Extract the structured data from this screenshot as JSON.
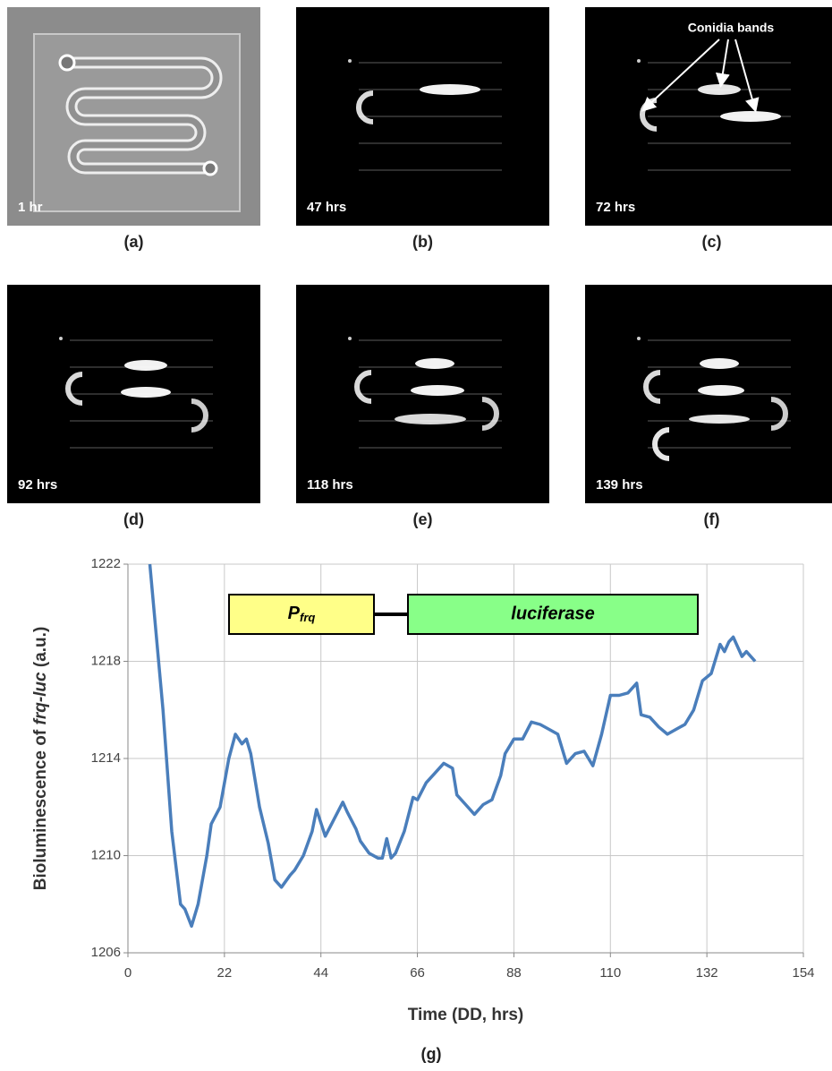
{
  "panels": [
    {
      "time": "1 hr",
      "caption": "(a)"
    },
    {
      "time": "47 hrs",
      "caption": "(b)"
    },
    {
      "time": "72 hrs",
      "caption": "(c)",
      "annotation": "Conidia bands"
    },
    {
      "time": "92 hrs",
      "caption": "(d)"
    },
    {
      "time": "118 hrs",
      "caption": "(e)"
    },
    {
      "time": "139 hrs",
      "caption": "(f)"
    }
  ],
  "chart_data": {
    "type": "line",
    "caption": "(g)",
    "xlabel": "Time (DD, hrs)",
    "ylabel": [
      "Bioluminescence of ",
      "frq-luc",
      " (a.u.)"
    ],
    "construct": {
      "promoter": "P",
      "promoter_sub": "frq",
      "gene": "luciferase"
    },
    "x": [
      5,
      8,
      10,
      12,
      13,
      14.5,
      16,
      18,
      19,
      21,
      23,
      24.5,
      26,
      27,
      28,
      30,
      32,
      33.5,
      35,
      37,
      38,
      40,
      42,
      43,
      45,
      47,
      49,
      50,
      52,
      53,
      55,
      57,
      58,
      59,
      60,
      61,
      63,
      65,
      66,
      68,
      70,
      72,
      74,
      75,
      77,
      79,
      81,
      83,
      85,
      86,
      88,
      90,
      92,
      94,
      96,
      98,
      100,
      102,
      104,
      106,
      108,
      110,
      112,
      114,
      116,
      117,
      119,
      121,
      123,
      125,
      127,
      129,
      131,
      133,
      135,
      136,
      137,
      138,
      140,
      141,
      143
    ],
    "series": [
      {
        "name": "frq-luc",
        "color": "#4a7ebb",
        "values": [
          1222,
          1216,
          1211,
          1208,
          1207.8,
          1207.1,
          1208,
          1210,
          1211.3,
          1212,
          1214,
          1215,
          1214.6,
          1214.8,
          1214.2,
          1212,
          1210.5,
          1209,
          1208.7,
          1209.2,
          1209.4,
          1210,
          1211,
          1211.9,
          1210.8,
          1211.5,
          1212.2,
          1211.8,
          1211.1,
          1210.6,
          1210.1,
          1209.9,
          1209.9,
          1210.7,
          1209.9,
          1210.1,
          1211,
          1212.4,
          1212.3,
          1213,
          1213.4,
          1213.8,
          1213.6,
          1212.5,
          1212.1,
          1211.7,
          1212.1,
          1212.3,
          1213.3,
          1214.2,
          1214.8,
          1214.8,
          1215.5,
          1215.4,
          1215.2,
          1215,
          1213.8,
          1214.2,
          1214.3,
          1213.7,
          1215,
          1216.6,
          1216.6,
          1216.7,
          1217.1,
          1215.8,
          1215.7,
          1215.3,
          1215,
          1215.2,
          1215.4,
          1216,
          1217.2,
          1217.5,
          1218.7,
          1218.4,
          1218.8,
          1219,
          1218.2,
          1218.4,
          1218
        ]
      }
    ],
    "xlim": [
      0,
      154
    ],
    "xticks": [
      0,
      22,
      44,
      66,
      88,
      110,
      132,
      154
    ],
    "ylim": [
      1206,
      1222
    ],
    "yticks": [
      1206,
      1210,
      1214,
      1218,
      1222
    ],
    "grid": true
  }
}
